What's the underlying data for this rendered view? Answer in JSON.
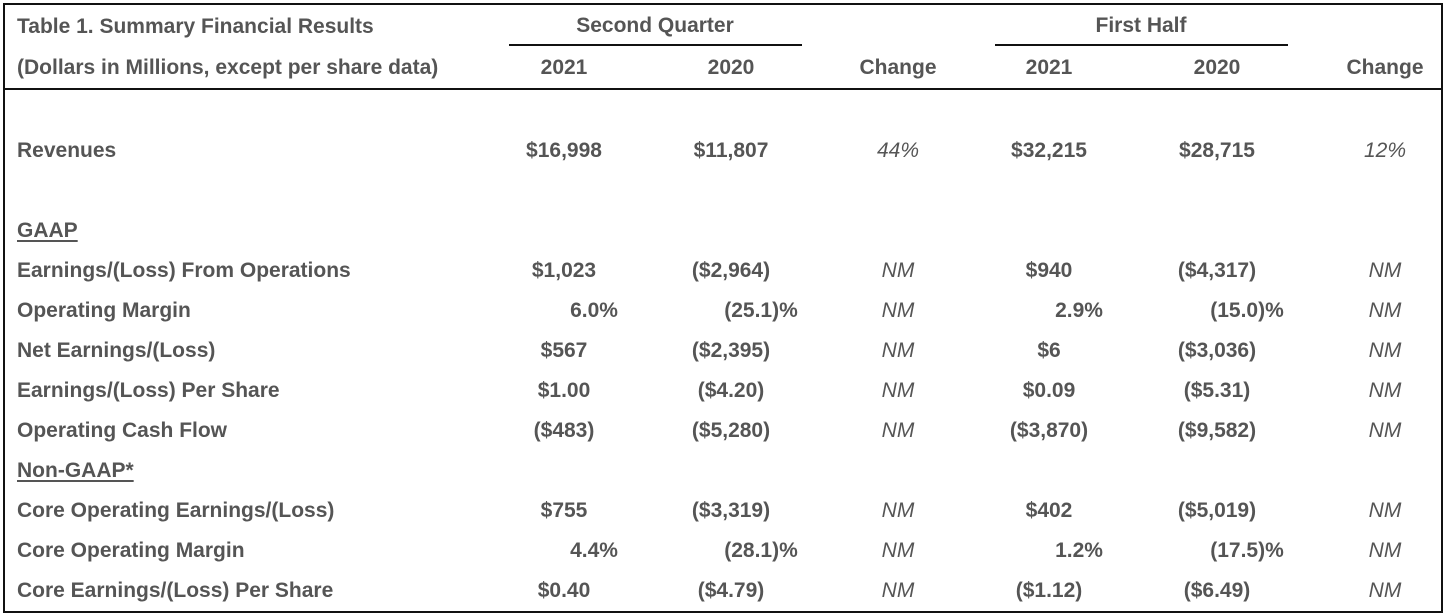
{
  "table": {
    "title": "Table 1. Summary Financial Results",
    "subtitle": "(Dollars in Millions, except per share data)",
    "groups": [
      "Second Quarter",
      "First Half"
    ],
    "columns": [
      "2021",
      "2020",
      "Change",
      "2021",
      "2020",
      "Change"
    ],
    "revenues": {
      "label": "Revenues",
      "values": [
        "$16,998",
        "$11,807",
        "44%",
        "$32,215",
        "$28,715",
        "12%"
      ]
    },
    "gaap_section": "GAAP",
    "gaap_rows": [
      {
        "label": "Earnings/(Loss) From Operations",
        "values": [
          "$1,023",
          "($2,964)",
          "NM",
          "$940",
          "($4,317)",
          "NM"
        ]
      },
      {
        "label": "Operating Margin",
        "values": [
          "6.0%",
          "(25.1)%",
          "NM",
          "2.9%",
          "(15.0)%",
          "NM"
        ]
      },
      {
        "label": "Net Earnings/(Loss)",
        "values": [
          "$567",
          "($2,395)",
          "NM",
          "$6",
          "($3,036)",
          "NM"
        ]
      },
      {
        "label": "Earnings/(Loss) Per Share",
        "values": [
          "$1.00",
          "($4.20)",
          "NM",
          "$0.09",
          "($5.31)",
          "NM"
        ]
      },
      {
        "label": "Operating Cash Flow",
        "values": [
          "($483)",
          "($5,280)",
          "NM",
          "($3,870)",
          "($9,582)",
          "NM"
        ]
      }
    ],
    "non_gaap_section": "Non-GAAP*",
    "non_gaap_rows": [
      {
        "label": "Core Operating Earnings/(Loss)",
        "values": [
          "$755",
          "($3,319)",
          "NM",
          "$402",
          "($5,019)",
          "NM"
        ]
      },
      {
        "label": "Core Operating Margin",
        "values": [
          "4.4%",
          "(28.1)%",
          "NM",
          "1.2%",
          "(17.5)%",
          "NM"
        ]
      },
      {
        "label": "Core Earnings/(Loss) Per Share",
        "values": [
          "$0.40",
          "($4.79)",
          "NM",
          "($1.12)",
          "($6.49)",
          "NM"
        ]
      }
    ]
  }
}
